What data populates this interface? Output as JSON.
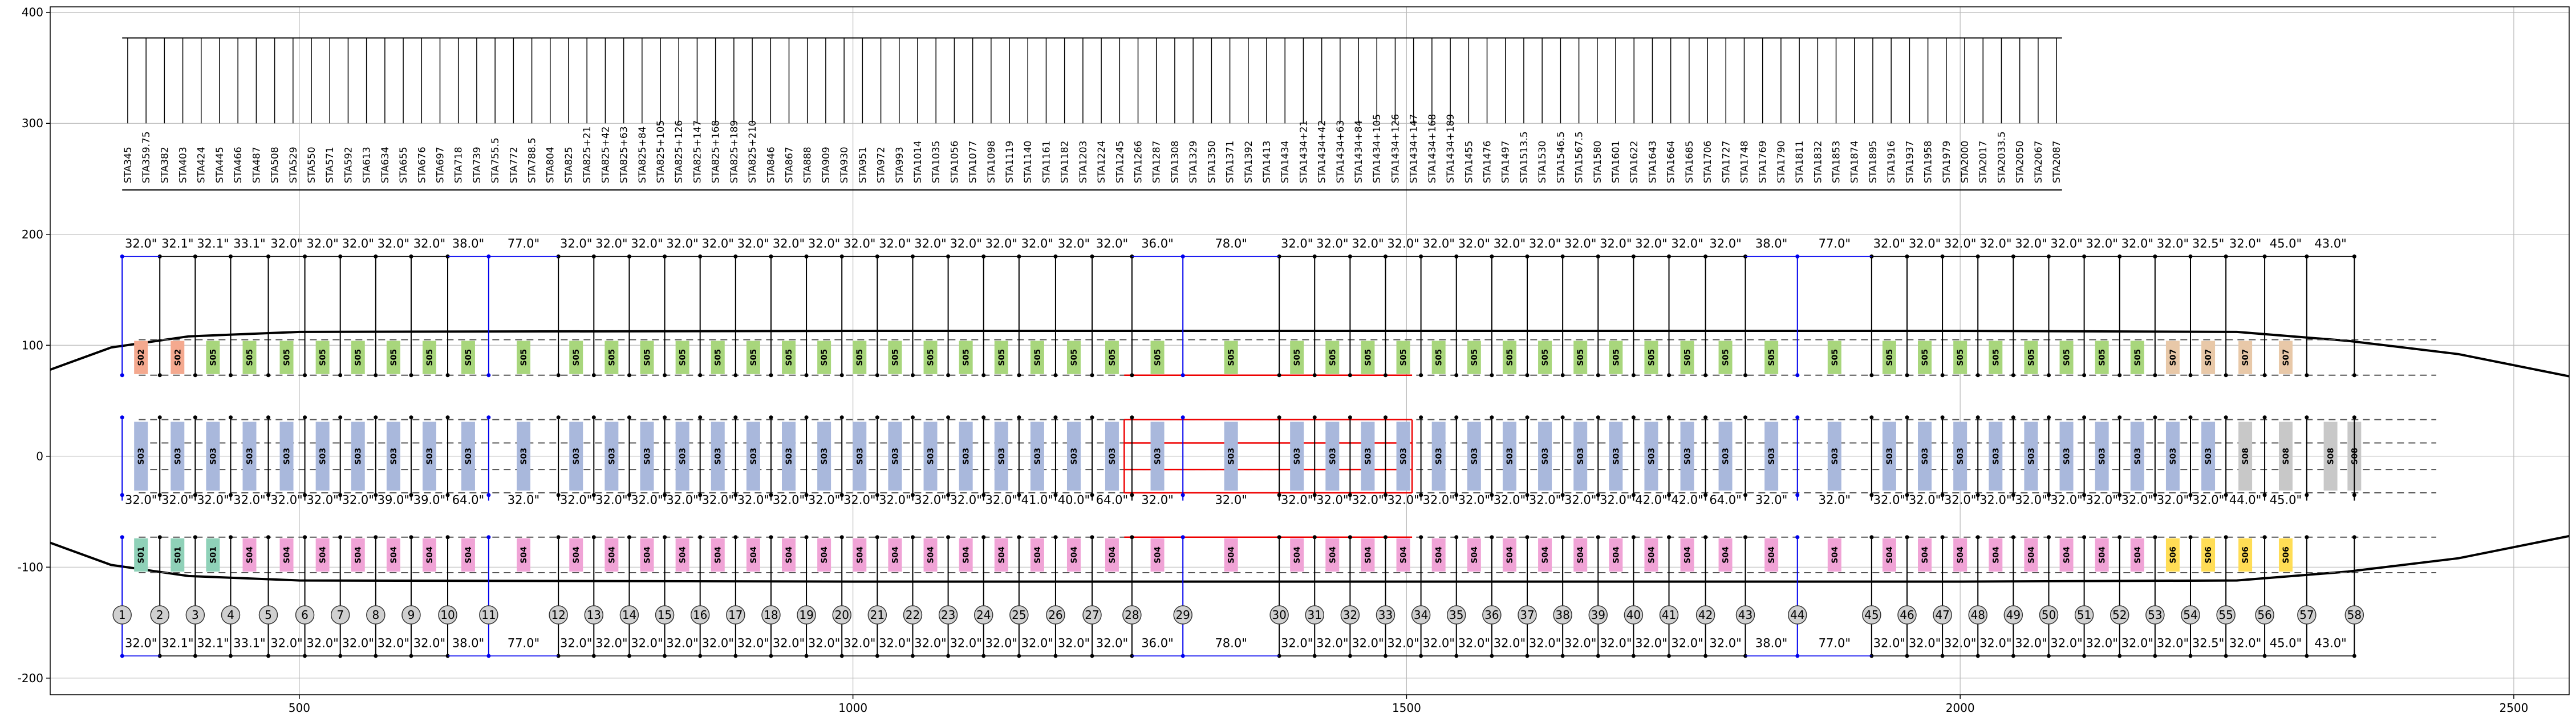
{
  "axes": {
    "x_ticks": [
      500,
      1000,
      1500,
      2000,
      2500
    ],
    "y_ticks": [
      400,
      300,
      200,
      100,
      0,
      -100,
      -200
    ],
    "xlim": [
      275,
      2550
    ],
    "ylim": [
      -215,
      405
    ]
  },
  "stations": [
    "STA345",
    "STA359.75",
    "STA382",
    "STA403",
    "STA424",
    "STA445",
    "STA466",
    "STA487",
    "STA508",
    "STA529",
    "STA550",
    "STA571",
    "STA592",
    "STA613",
    "STA634",
    "STA655",
    "STA676",
    "STA697",
    "STA718",
    "STA739",
    "STA755.5",
    "STA772",
    "STA788.5",
    "STA804",
    "STA825",
    "STA825+21",
    "STA825+42",
    "STA825+63",
    "STA825+84",
    "STA825+105",
    "STA825+126",
    "STA825+147",
    "STA825+168",
    "STA825+189",
    "STA825+210",
    "STA846",
    "STA867",
    "STA888",
    "STA909",
    "STA930",
    "STA951",
    "STA972",
    "STA993",
    "STA1014",
    "STA1035",
    "STA1056",
    "STA1077",
    "STA1098",
    "STA1119",
    "STA1140",
    "STA1161",
    "STA1182",
    "STA1203",
    "STA1224",
    "STA1245",
    "STA1266",
    "STA1287",
    "STA1308",
    "STA1329",
    "STA1350",
    "STA1371",
    "STA1392",
    "STA1413",
    "STA1434",
    "STA1434+21",
    "STA1434+42",
    "STA1434+63",
    "STA1434+84",
    "STA1434+105",
    "STA1434+126",
    "STA1434+147",
    "STA1434+168",
    "STA1434+189",
    "STA1455",
    "STA1476",
    "STA1497",
    "STA1513.5",
    "STA1530",
    "STA1546.5",
    "STA1567.5",
    "STA1580",
    "STA1601",
    "STA1622",
    "STA1643",
    "STA1664",
    "STA1685",
    "STA1706",
    "STA1727",
    "STA1748",
    "STA1769",
    "STA1790",
    "STA1811",
    "STA1832",
    "STA1853",
    "STA1874",
    "STA1895",
    "STA1916",
    "STA1937",
    "STA1958",
    "STA1979",
    "STA2000",
    "STA2017",
    "STA2033.5",
    "STA2050",
    "STA2067",
    "STA2087"
  ],
  "frames": [
    {
      "n": "1",
      "x": 340,
      "top": "32.0\"",
      "mid": "32.0\"",
      "bot": "32.0\"",
      "blue": true
    },
    {
      "n": "2",
      "x": 374,
      "top": "32.1\"",
      "mid": "32.0\"",
      "bot": "32.1\""
    },
    {
      "n": "3",
      "x": 406,
      "top": "32.1\"",
      "mid": "32.0\"",
      "bot": "32.1\""
    },
    {
      "n": "4",
      "x": 438,
      "top": "33.1\"",
      "mid": "32.0\"",
      "bot": "33.1\""
    },
    {
      "n": "5",
      "x": 472,
      "top": "32.0\"",
      "mid": "32.0\"",
      "bot": "32.0\""
    },
    {
      "n": "6",
      "x": 505,
      "top": "32.0\"",
      "mid": "32.0\"",
      "bot": "32.0\""
    },
    {
      "n": "7",
      "x": 537,
      "top": "32.0\"",
      "mid": "32.0\"",
      "bot": "32.0\""
    },
    {
      "n": "8",
      "x": 569,
      "top": "32.0\"",
      "mid": "39.0\"",
      "bot": "32.0\""
    },
    {
      "n": "9",
      "x": 601,
      "top": "32.0\"",
      "mid": "39.0\"",
      "bot": "32.0\""
    },
    {
      "n": "10",
      "x": 634,
      "top": "38.0\"",
      "mid": "64.0\"",
      "bot": "38.0\""
    },
    {
      "n": "11",
      "x": 671,
      "top": "77.0\"",
      "mid": "32.0\"",
      "bot": "77.0\"",
      "blue": true
    },
    {
      "n": "12",
      "x": 734,
      "top": "32.0\"",
      "mid": "32.0\"",
      "bot": "32.0\""
    },
    {
      "n": "13",
      "x": 766,
      "top": "32.0\"",
      "mid": "32.0\"",
      "bot": "32.0\""
    },
    {
      "n": "14",
      "x": 798,
      "top": "32.0\"",
      "mid": "32.0\"",
      "bot": "32.0\""
    },
    {
      "n": "15",
      "x": 830,
      "top": "32.0\"",
      "mid": "32.0\"",
      "bot": "32.0\""
    },
    {
      "n": "16",
      "x": 862,
      "top": "32.0\"",
      "mid": "32.0\"",
      "bot": "32.0\""
    },
    {
      "n": "17",
      "x": 894,
      "top": "32.0\"",
      "mid": "32.0\"",
      "bot": "32.0\""
    },
    {
      "n": "18",
      "x": 926,
      "top": "32.0\"",
      "mid": "32.0\"",
      "bot": "32.0\""
    },
    {
      "n": "19",
      "x": 958,
      "top": "32.0\"",
      "mid": "32.0\"",
      "bot": "32.0\""
    },
    {
      "n": "20",
      "x": 990,
      "top": "32.0\"",
      "mid": "32.0\"",
      "bot": "32.0\""
    },
    {
      "n": "21",
      "x": 1022,
      "top": "32.0\"",
      "mid": "32.0\"",
      "bot": "32.0\""
    },
    {
      "n": "22",
      "x": 1054,
      "top": "32.0\"",
      "mid": "32.0\"",
      "bot": "32.0\""
    },
    {
      "n": "23",
      "x": 1086,
      "top": "32.0\"",
      "mid": "32.0\"",
      "bot": "32.0\""
    },
    {
      "n": "24",
      "x": 1118,
      "top": "32.0\"",
      "mid": "32.0\"",
      "bot": "32.0\""
    },
    {
      "n": "25",
      "x": 1150,
      "top": "32.0\"",
      "mid": "41.0\"",
      "bot": "32.0\""
    },
    {
      "n": "26",
      "x": 1183,
      "top": "32.0\"",
      "mid": "40.0\"",
      "bot": "32.0\""
    },
    {
      "n": "27",
      "x": 1216,
      "top": "32.0\"",
      "mid": "64.0\"",
      "bot": "32.0\""
    },
    {
      "n": "28",
      "x": 1252,
      "top": "36.0\"",
      "mid": "32.0\"",
      "bot": "36.0\""
    },
    {
      "n": "29",
      "x": 1298,
      "top": "78.0\"",
      "mid": "32.0\"",
      "bot": "78.0\"",
      "blue": true
    },
    {
      "n": "30",
      "x": 1385,
      "top": "32.0\"",
      "mid": "32.0\"",
      "bot": "32.0\""
    },
    {
      "n": "31",
      "x": 1417,
      "top": "32.0\"",
      "mid": "32.0\"",
      "bot": "32.0\""
    },
    {
      "n": "32",
      "x": 1449,
      "top": "32.0\"",
      "mid": "32.0\"",
      "bot": "32.0\""
    },
    {
      "n": "33",
      "x": 1481,
      "top": "32.0\"",
      "mid": "32.0\"",
      "bot": "32.0\""
    },
    {
      "n": "34",
      "x": 1513,
      "top": "32.0\"",
      "mid": "32.0\"",
      "bot": "32.0\""
    },
    {
      "n": "35",
      "x": 1545,
      "top": "32.0\"",
      "mid": "32.0\"",
      "bot": "32.0\""
    },
    {
      "n": "36",
      "x": 1577,
      "top": "32.0\"",
      "mid": "32.0\"",
      "bot": "32.0\""
    },
    {
      "n": "37",
      "x": 1609,
      "top": "32.0\"",
      "mid": "32.0\"",
      "bot": "32.0\""
    },
    {
      "n": "38",
      "x": 1641,
      "top": "32.0\"",
      "mid": "32.0\"",
      "bot": "32.0\""
    },
    {
      "n": "39",
      "x": 1673,
      "top": "32.0\"",
      "mid": "32.0\"",
      "bot": "32.0\""
    },
    {
      "n": "40",
      "x": 1705,
      "top": "32.0\"",
      "mid": "42.0\"",
      "bot": "32.0\""
    },
    {
      "n": "41",
      "x": 1737,
      "top": "32.0\"",
      "mid": "42.0\"",
      "bot": "32.0\""
    },
    {
      "n": "42",
      "x": 1770,
      "top": "32.0\"",
      "mid": "64.0\"",
      "bot": "32.0\""
    },
    {
      "n": "43",
      "x": 1806,
      "top": "38.0\"",
      "mid": "32.0\"",
      "bot": "38.0\""
    },
    {
      "n": "44",
      "x": 1853,
      "top": "77.0\"",
      "mid": "32.0\"",
      "bot": "77.0\"",
      "blue": true
    },
    {
      "n": "45",
      "x": 1920,
      "top": "32.0\"",
      "mid": "32.0\"",
      "bot": "32.0\""
    },
    {
      "n": "46",
      "x": 1952,
      "top": "32.0\"",
      "mid": "32.0\"",
      "bot": "32.0\""
    },
    {
      "n": "47",
      "x": 1984,
      "top": "32.0\"",
      "mid": "32.0\"",
      "bot": "32.0\""
    },
    {
      "n": "48",
      "x": 2016,
      "top": "32.0\"",
      "mid": "32.0\"",
      "bot": "32.0\""
    },
    {
      "n": "49",
      "x": 2048,
      "top": "32.0\"",
      "mid": "32.0\"",
      "bot": "32.0\""
    },
    {
      "n": "50",
      "x": 2080,
      "top": "32.0\"",
      "mid": "32.0\"",
      "bot": "32.0\""
    },
    {
      "n": "51",
      "x": 2112,
      "top": "32.0\"",
      "mid": "32.0\"",
      "bot": "32.0\""
    },
    {
      "n": "52",
      "x": 2144,
      "top": "32.0\"",
      "mid": "32.0\"",
      "bot": "32.0\""
    },
    {
      "n": "53",
      "x": 2176,
      "top": "32.0\"",
      "mid": "32.0\"",
      "bot": "32.0\""
    },
    {
      "n": "54",
      "x": 2208,
      "top": "32.5\"",
      "mid": "32.0\"",
      "bot": "32.5\""
    },
    {
      "n": "55",
      "x": 2240,
      "top": "32.0\"",
      "mid": "44.0\"",
      "bot": "32.0\""
    },
    {
      "n": "56",
      "x": 2275,
      "top": "45.0\"",
      "mid": "45.0\"",
      "bot": "45.0\""
    },
    {
      "n": "57",
      "x": 2313,
      "top": "43.0\"",
      "mid": "",
      "bot": "43.0\""
    },
    {
      "n": "58",
      "x": 2356,
      "top": "",
      "mid": "",
      "bot": ""
    }
  ],
  "upper_blocks": [
    "S02",
    "S02",
    "S05",
    "S05",
    "S05",
    "S05",
    "S05",
    "S05",
    "S05",
    "S05",
    "S05",
    "S05",
    "S05",
    "S05",
    "S05",
    "S05",
    "S05",
    "S05",
    "S05",
    "S05",
    "S05",
    "S05",
    "S05",
    "S05",
    "S05",
    "S05",
    "S05",
    "S05",
    "S05",
    "S05",
    "S05",
    "S05",
    "S05",
    "S05",
    "S05",
    "S05",
    "S05",
    "S05",
    "S05",
    "S05",
    "S05",
    "S05",
    "S05",
    "S05",
    "S05",
    "S05",
    "S05",
    "S05",
    "S05",
    "S05",
    "S05",
    "S05",
    "S07",
    "S07",
    "S07",
    "S07"
  ],
  "middle_blocks": [
    "S03",
    "S03",
    "S03",
    "S03",
    "S03",
    "S03",
    "S03",
    "S03",
    "S03",
    "S03",
    "S03",
    "S03",
    "S03",
    "S03",
    "S03",
    "S03",
    "S03",
    "S03",
    "S03",
    "S03",
    "S03",
    "S03",
    "S03",
    "S03",
    "S03",
    "S03",
    "S03",
    "S03",
    "S03",
    "S03",
    "S03",
    "S03",
    "S03",
    "S03",
    "S03",
    "S03",
    "S03",
    "S03",
    "S03",
    "S03",
    "S03",
    "S03",
    "S03",
    "S03",
    "S03",
    "S03",
    "S03",
    "S03",
    "S03",
    "S03",
    "S03",
    "S03",
    "S03",
    "S03",
    "S08",
    "S08",
    "S08",
    "S08"
  ],
  "lower_blocks": [
    "S01",
    "S01",
    "S01",
    "S04",
    "S04",
    "S04",
    "S04",
    "S04",
    "S04",
    "S04",
    "S04",
    "S04",
    "S04",
    "S04",
    "S04",
    "S04",
    "S04",
    "S04",
    "S04",
    "S04",
    "S04",
    "S04",
    "S04",
    "S04",
    "S04",
    "S04",
    "S04",
    "S04",
    "S04",
    "S04",
    "S04",
    "S04",
    "S04",
    "S04",
    "S04",
    "S04",
    "S04",
    "S04",
    "S04",
    "S04",
    "S04",
    "S04",
    "S04",
    "S04",
    "S04",
    "S04",
    "S04",
    "S04",
    "S04",
    "S04",
    "S04",
    "S04",
    "S06",
    "S06",
    "S06",
    "S06"
  ],
  "colors": {
    "S01": "#8fd1b8",
    "S02": "#f4a98f",
    "S03": "#a9b8dc",
    "S04": "#f0a3d6",
    "S05": "#a8d67c",
    "S06": "#ffdd55",
    "S07": "#e8c8a8",
    "S08": "#c8c8c8",
    "blue": "#0000ee",
    "red": "#ee0000",
    "grid": "#bbbbbb"
  }
}
